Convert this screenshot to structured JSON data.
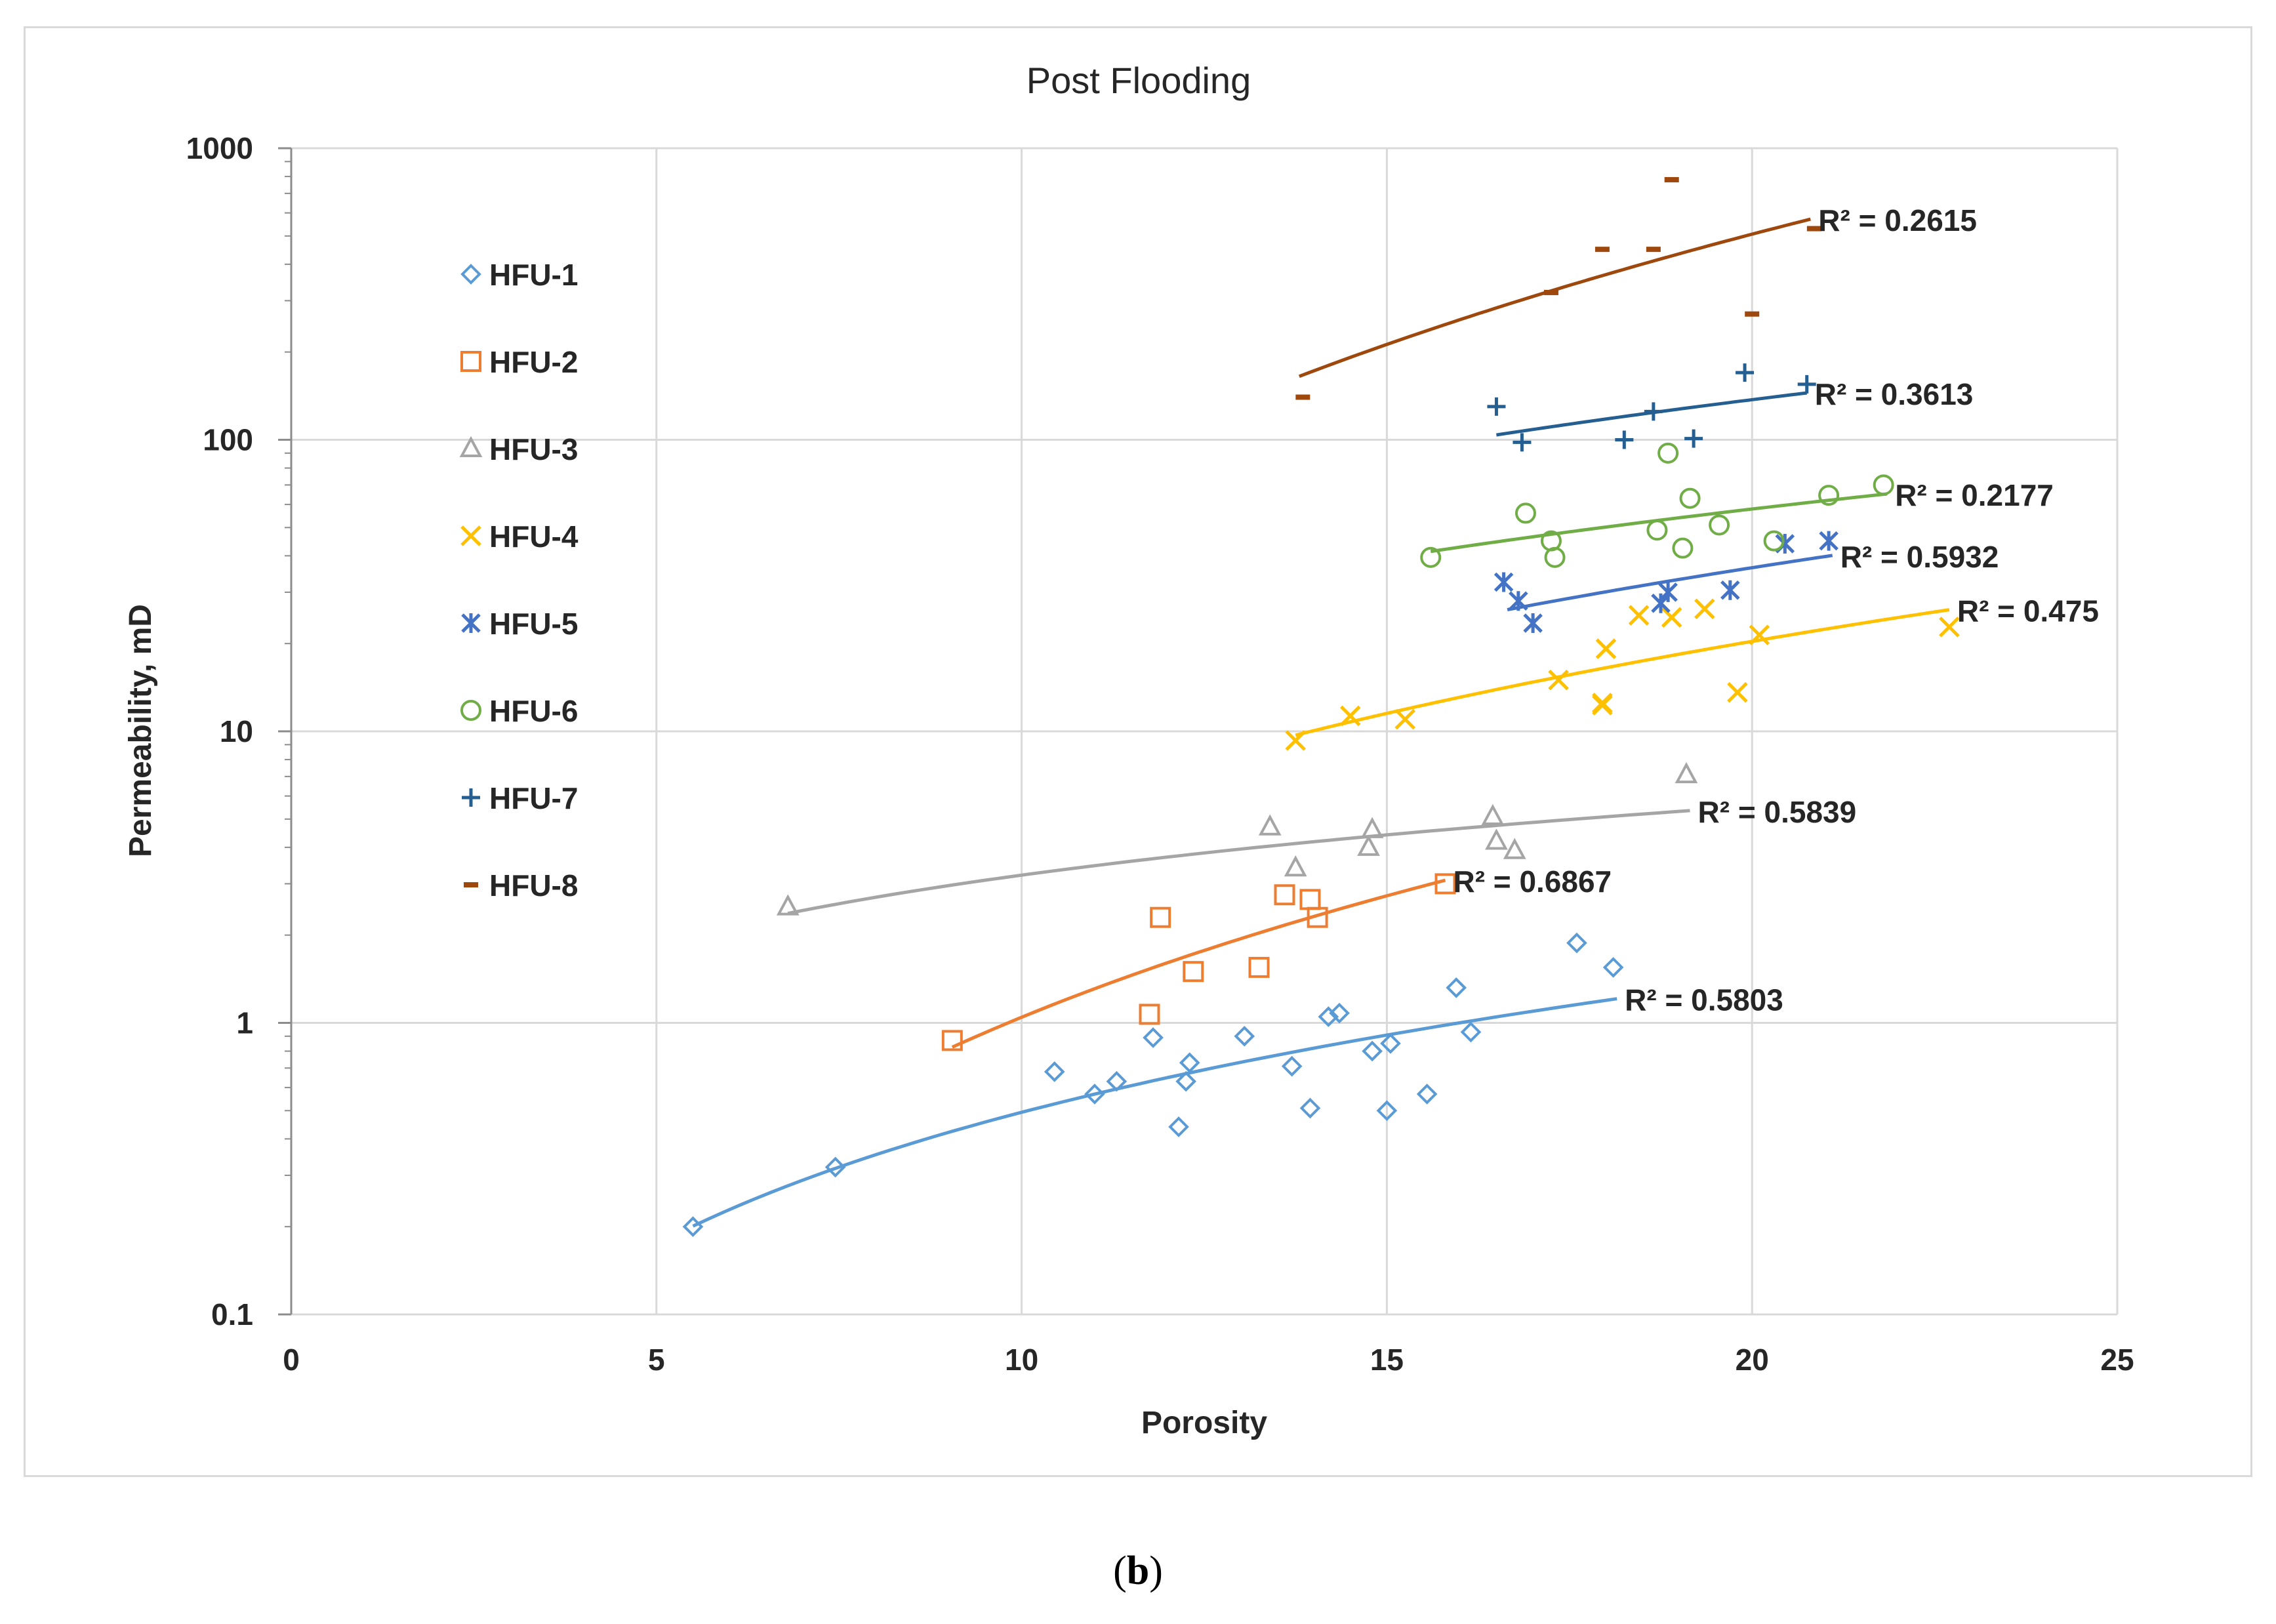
{
  "caption": {
    "open": "(",
    "letter": "b",
    "close": ")"
  },
  "chart_data": {
    "type": "scatter",
    "title": "Post Flooding",
    "xlabel": "Porosity",
    "ylabel": "Permeability, mD",
    "xlim": [
      0,
      25
    ],
    "ylim": [
      0.1,
      1000
    ],
    "yscale": "log",
    "x_ticks": [
      0,
      5,
      10,
      15,
      20,
      25
    ],
    "y_ticks": [
      0.1,
      1,
      10,
      100,
      1000
    ],
    "x_tick_labels": [
      "0",
      "5",
      "10",
      "15",
      "20",
      "25"
    ],
    "y_tick_labels": [
      "0.1",
      "1",
      "10",
      "100",
      "1000"
    ],
    "grid": true,
    "legend_position": "left",
    "series": [
      {
        "name": "HFU-1",
        "marker": "diamond",
        "color": "#5b9bd5",
        "points": [
          [
            5.5,
            0.2
          ],
          [
            7.45,
            0.32
          ],
          [
            10.45,
            0.68
          ],
          [
            11,
            0.57
          ],
          [
            11.3,
            0.63
          ],
          [
            11.8,
            0.89
          ],
          [
            12.15,
            0.44
          ],
          [
            12.25,
            0.63
          ],
          [
            12.3,
            0.73
          ],
          [
            13.05,
            0.9
          ],
          [
            13.7,
            0.71
          ],
          [
            13.95,
            0.51
          ],
          [
            14.2,
            1.05
          ],
          [
            14.35,
            1.08
          ],
          [
            14.8,
            0.8
          ],
          [
            15,
            0.5
          ],
          [
            15.05,
            0.85
          ],
          [
            15.55,
            0.57
          ],
          [
            15.95,
            1.32
          ],
          [
            16.15,
            0.93
          ],
          [
            17.6,
            1.88
          ],
          [
            18.1,
            1.55
          ]
        ],
        "trend": {
          "x0": 5.5,
          "x1": 18.15,
          "r2": "R² = 0.5803"
        }
      },
      {
        "name": "HFU-2",
        "marker": "square",
        "color": "#ed7d31",
        "points": [
          [
            9.05,
            0.87
          ],
          [
            11.75,
            1.07
          ],
          [
            11.9,
            2.3
          ],
          [
            12.35,
            1.5
          ],
          [
            13.25,
            1.55
          ],
          [
            13.6,
            2.75
          ],
          [
            13.95,
            2.65
          ],
          [
            14.05,
            2.3
          ],
          [
            15.8,
            3.0
          ]
        ],
        "trend": {
          "x0": 9.05,
          "x1": 15.8,
          "r2": "R² = 0.6867"
        }
      },
      {
        "name": "HFU-3",
        "marker": "triangle",
        "color": "#a5a5a5",
        "points": [
          [
            6.8,
            2.5
          ],
          [
            13.4,
            4.7
          ],
          [
            13.75,
            3.4
          ],
          [
            14.75,
            4.0
          ],
          [
            14.8,
            4.6
          ],
          [
            16.45,
            5.1
          ],
          [
            16.5,
            4.2
          ],
          [
            16.75,
            3.9
          ],
          [
            19.1,
            7.1
          ]
        ],
        "trend": {
          "x0": 6.8,
          "x1": 19.15,
          "r2": "R² = 0.5839"
        }
      },
      {
        "name": "HFU-4",
        "marker": "x",
        "color": "#ffc000",
        "points": [
          [
            13.75,
            9.3
          ],
          [
            14.5,
            11.3
          ],
          [
            15.25,
            11.0
          ],
          [
            17.35,
            15.0
          ],
          [
            17.95,
            12.5
          ],
          [
            17.95,
            12.3
          ],
          [
            18.0,
            19.2
          ],
          [
            18.45,
            25.0
          ],
          [
            18.9,
            24.6
          ],
          [
            19.35,
            26.3
          ],
          [
            19.8,
            13.6
          ],
          [
            20.1,
            21.4
          ],
          [
            22.7,
            22.8
          ]
        ],
        "trend": {
          "x0": 13.75,
          "x1": 22.7,
          "r2": "R² = 0.475"
        }
      },
      {
        "name": "HFU-5",
        "marker": "asterisk",
        "color": "#4472c4",
        "points": [
          [
            16.6,
            32.5
          ],
          [
            16.8,
            28.0
          ],
          [
            17.0,
            23.5
          ],
          [
            18.75,
            27.5
          ],
          [
            18.85,
            30.0
          ],
          [
            19.7,
            30.5
          ],
          [
            20.45,
            44.0
          ],
          [
            21.05,
            45.0
          ]
        ],
        "trend": {
          "x0": 16.65,
          "x1": 21.1,
          "r2": "R² = 0.5932"
        }
      },
      {
        "name": "HFU-6",
        "marker": "circle",
        "color": "#70ad47",
        "points": [
          [
            15.6,
            39.5
          ],
          [
            16.9,
            56.0
          ],
          [
            17.25,
            45.0
          ],
          [
            17.3,
            39.5
          ],
          [
            18.7,
            49.0
          ],
          [
            18.85,
            90.0
          ],
          [
            19.05,
            42.5
          ],
          [
            19.15,
            63.0
          ],
          [
            19.55,
            51.0
          ],
          [
            20.3,
            45.0
          ],
          [
            21.05,
            64.5
          ],
          [
            21.8,
            70.0
          ]
        ],
        "trend": {
          "x0": 15.6,
          "x1": 21.85,
          "r2": "R² = 0.2177"
        }
      },
      {
        "name": "HFU-7",
        "marker": "plus",
        "color": "#255e91",
        "points": [
          [
            16.5,
            130
          ],
          [
            16.85,
            98
          ],
          [
            18.25,
            100
          ],
          [
            18.65,
            125
          ],
          [
            19.2,
            101
          ],
          [
            19.9,
            170
          ],
          [
            20.75,
            155
          ]
        ],
        "trend": {
          "x0": 16.5,
          "x1": 20.75,
          "r2": "R² = 0.3613"
        }
      },
      {
        "name": "HFU-8",
        "marker": "dash",
        "color": "#9e480e",
        "points": [
          [
            13.85,
            140
          ],
          [
            17.25,
            320
          ],
          [
            17.95,
            450
          ],
          [
            18.65,
            450
          ],
          [
            18.9,
            780
          ],
          [
            20.0,
            270
          ],
          [
            20.85,
            530
          ]
        ],
        "trend": {
          "x0": 13.8,
          "x1": 20.8,
          "r2": "R² = 0.2615"
        }
      }
    ]
  }
}
